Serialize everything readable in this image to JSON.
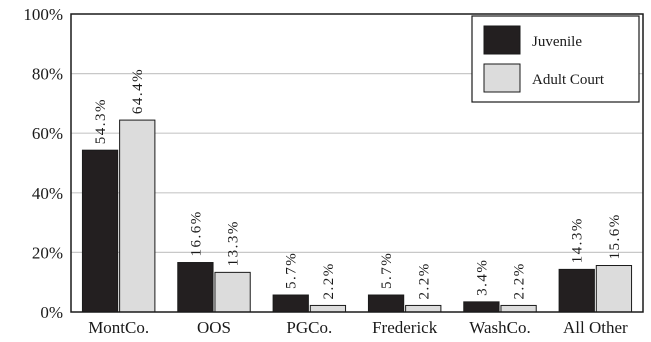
{
  "chart_data": {
    "type": "bar",
    "categories": [
      "MontCo.",
      "OOS",
      "PGCo.",
      "Frederick",
      "WashCo.",
      "All Other"
    ],
    "series": [
      {
        "name": "Juvenile",
        "values": [
          54.3,
          16.6,
          5.7,
          5.7,
          3.4,
          14.3
        ],
        "labels": [
          "54.3%",
          "16.6%",
          "5.7%",
          "5.7%",
          "3.4%",
          "14.3%"
        ],
        "color": "#231f20"
      },
      {
        "name": "Adult Court",
        "values": [
          64.4,
          13.3,
          2.2,
          2.2,
          2.2,
          15.6
        ],
        "labels": [
          "64.4%",
          "13.3%",
          "2.2%",
          "2.2%",
          "2.2%",
          "15.6%"
        ],
        "color": "#dcdcdc"
      }
    ],
    "yticks": [
      "0%",
      "20%",
      "40%",
      "60%",
      "80%",
      "100%"
    ],
    "ylim": [
      0,
      100
    ],
    "grid": true,
    "legend_position": "top-right"
  }
}
